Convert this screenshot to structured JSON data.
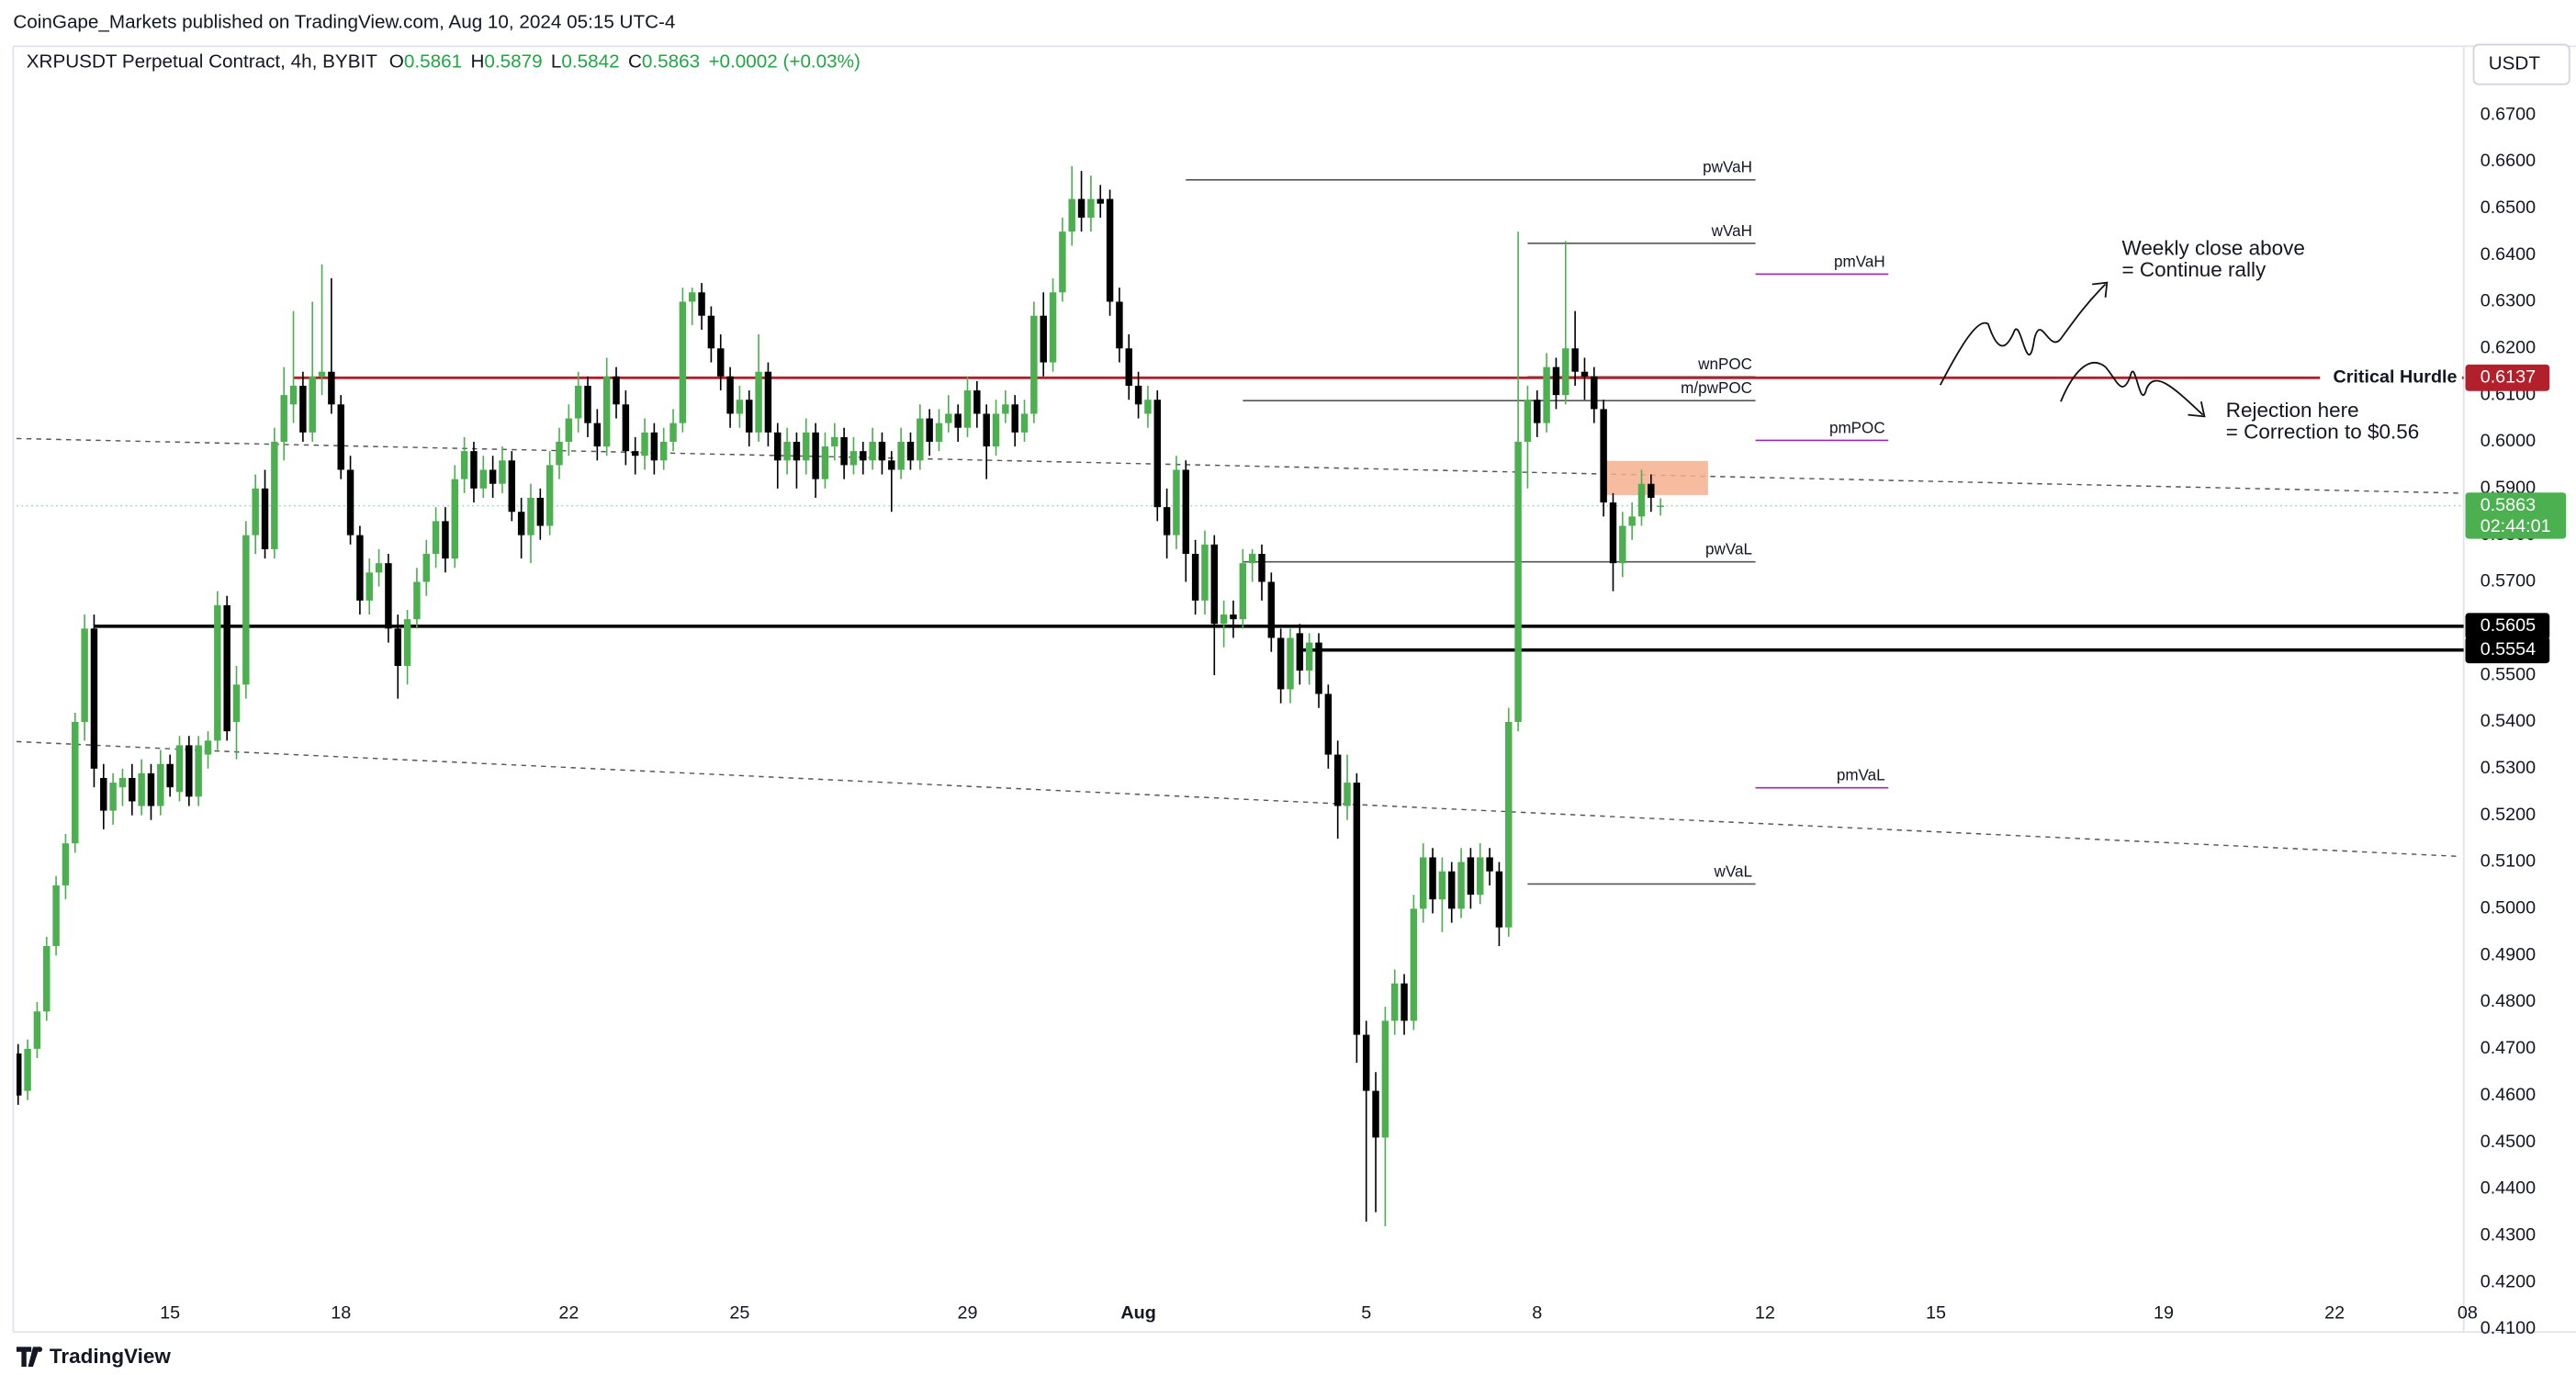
{
  "header": {
    "publisher": "CoinGape_Markets published on TradingView.com, Aug 10, 2024 05:15 UTC-4",
    "logo": "TradingView"
  },
  "chart_data": {
    "type": "candlestick",
    "title": "XRPUSDT Perpetual Contract, 4h, BYBIT",
    "ohlc_labels": [
      "O",
      "H",
      "L",
      "C"
    ],
    "change": "+0.0002 (+0.03%)",
    "currency": "USDT",
    "countdown": "02:44:01",
    "up_color": "#4caf50",
    "down_color": "#000000",
    "ylim": [
      0.4097,
      0.6847
    ],
    "xlim": [
      -0.17,
      257.6
    ],
    "yticks": [
      {
        "value": 0.67,
        "label": "0.6700"
      },
      {
        "value": 0.66,
        "label": "0.6600"
      },
      {
        "value": 0.65,
        "label": "0.6500"
      },
      {
        "value": 0.64,
        "label": "0.6400"
      },
      {
        "value": 0.63,
        "label": "0.6300"
      },
      {
        "value": 0.62,
        "label": "0.6200"
      },
      {
        "value": 0.61,
        "label": "0.6100"
      },
      {
        "value": 0.6,
        "label": "0.6000"
      },
      {
        "value": 0.59,
        "label": "0.5900"
      },
      {
        "value": 0.58,
        "label": "0.5800"
      },
      {
        "value": 0.57,
        "label": "0.5700"
      },
      {
        "value": 0.56,
        "label": "0.5600"
      },
      {
        "value": 0.55,
        "label": "0.5500"
      },
      {
        "value": 0.54,
        "label": "0.5400"
      },
      {
        "value": 0.53,
        "label": "0.5300"
      },
      {
        "value": 0.52,
        "label": "0.5200"
      },
      {
        "value": 0.51,
        "label": "0.5100"
      },
      {
        "value": 0.5,
        "label": "0.5000"
      },
      {
        "value": 0.49,
        "label": "0.4900"
      },
      {
        "value": 0.48,
        "label": "0.4800"
      },
      {
        "value": 0.47,
        "label": "0.4700"
      },
      {
        "value": 0.46,
        "label": "0.4600"
      },
      {
        "value": 0.45,
        "label": "0.4500"
      },
      {
        "value": 0.44,
        "label": "0.4400"
      },
      {
        "value": 0.43,
        "label": "0.4300"
      },
      {
        "value": 0.42,
        "label": "0.4200"
      },
      {
        "value": 0.41,
        "label": "0.4100"
      }
    ],
    "xticks": [
      {
        "value": 16,
        "label": "15"
      },
      {
        "value": 34,
        "label": "18"
      },
      {
        "value": 58,
        "label": "22"
      },
      {
        "value": 76,
        "label": "25"
      },
      {
        "value": 100,
        "label": "29"
      },
      {
        "value": 118,
        "label": "Aug"
      },
      {
        "value": 142,
        "label": "5"
      },
      {
        "value": 160,
        "label": "8"
      },
      {
        "value": 184,
        "label": "12"
      },
      {
        "value": 202,
        "label": "15"
      },
      {
        "value": 226,
        "label": "19"
      },
      {
        "value": 244,
        "label": "22"
      },
      {
        "value": 258,
        "label": "08"
      }
    ],
    "ohlc": [
      [
        0.469,
        0.471,
        0.458,
        0.46
      ],
      [
        0.461,
        0.472,
        0.459,
        0.47
      ],
      [
        0.47,
        0.48,
        0.468,
        0.478
      ],
      [
        0.478,
        0.494,
        0.476,
        0.492
      ],
      [
        0.492,
        0.507,
        0.49,
        0.505
      ],
      [
        0.505,
        0.516,
        0.502,
        0.514
      ],
      [
        0.514,
        0.542,
        0.512,
        0.54
      ],
      [
        0.54,
        0.563,
        0.536,
        0.56
      ],
      [
        0.56,
        0.563,
        0.526,
        0.53
      ],
      [
        0.528,
        0.531,
        0.517,
        0.521
      ],
      [
        0.521,
        0.529,
        0.518,
        0.527
      ],
      [
        0.526,
        0.53,
        0.522,
        0.528
      ],
      [
        0.528,
        0.531,
        0.52,
        0.523
      ],
      [
        0.522,
        0.532,
        0.52,
        0.529
      ],
      [
        0.529,
        0.531,
        0.519,
        0.522
      ],
      [
        0.522,
        0.534,
        0.52,
        0.531
      ],
      [
        0.531,
        0.533,
        0.524,
        0.526
      ],
      [
        0.525,
        0.537,
        0.523,
        0.535
      ],
      [
        0.535,
        0.537,
        0.522,
        0.524
      ],
      [
        0.524,
        0.537,
        0.522,
        0.535
      ],
      [
        0.533,
        0.538,
        0.53,
        0.536
      ],
      [
        0.536,
        0.568,
        0.534,
        0.565
      ],
      [
        0.565,
        0.567,
        0.536,
        0.538
      ],
      [
        0.54,
        0.552,
        0.532,
        0.548
      ],
      [
        0.548,
        0.583,
        0.545,
        0.58
      ],
      [
        0.58,
        0.593,
        0.576,
        0.59
      ],
      [
        0.59,
        0.594,
        0.575,
        0.577
      ],
      [
        0.577,
        0.603,
        0.575,
        0.6
      ],
      [
        0.6,
        0.616,
        0.596,
        0.61
      ],
      [
        0.608,
        0.628,
        0.604,
        0.612
      ],
      [
        0.612,
        0.615,
        0.6,
        0.602
      ],
      [
        0.602,
        0.63,
        0.6,
        0.614
      ],
      [
        0.614,
        0.638,
        0.61,
        0.615
      ],
      [
        0.615,
        0.635,
        0.606,
        0.608
      ],
      [
        0.608,
        0.61,
        0.592,
        0.594
      ],
      [
        0.594,
        0.597,
        0.578,
        0.58
      ],
      [
        0.58,
        0.582,
        0.563,
        0.566
      ],
      [
        0.566,
        0.575,
        0.563,
        0.572
      ],
      [
        0.572,
        0.577,
        0.569,
        0.574
      ],
      [
        0.574,
        0.576,
        0.557,
        0.56
      ],
      [
        0.56,
        0.563,
        0.545,
        0.552
      ],
      [
        0.552,
        0.564,
        0.548,
        0.562
      ],
      [
        0.562,
        0.573,
        0.56,
        0.57
      ],
      [
        0.57,
        0.579,
        0.567,
        0.576
      ],
      [
        0.576,
        0.586,
        0.573,
        0.583
      ],
      [
        0.583,
        0.586,
        0.572,
        0.575
      ],
      [
        0.575,
        0.595,
        0.573,
        0.592
      ],
      [
        0.592,
        0.601,
        0.589,
        0.598
      ],
      [
        0.598,
        0.6,
        0.587,
        0.59
      ],
      [
        0.59,
        0.597,
        0.588,
        0.594
      ],
      [
        0.594,
        0.597,
        0.588,
        0.591
      ],
      [
        0.591,
        0.599,
        0.589,
        0.596
      ],
      [
        0.596,
        0.598,
        0.583,
        0.585
      ],
      [
        0.585,
        0.588,
        0.575,
        0.58
      ],
      [
        0.58,
        0.591,
        0.574,
        0.588
      ],
      [
        0.588,
        0.59,
        0.579,
        0.582
      ],
      [
        0.582,
        0.598,
        0.58,
        0.595
      ],
      [
        0.595,
        0.603,
        0.592,
        0.6
      ],
      [
        0.6,
        0.608,
        0.597,
        0.605
      ],
      [
        0.605,
        0.615,
        0.602,
        0.612
      ],
      [
        0.612,
        0.614,
        0.601,
        0.604
      ],
      [
        0.604,
        0.607,
        0.596,
        0.599
      ],
      [
        0.599,
        0.618,
        0.597,
        0.614
      ],
      [
        0.614,
        0.616,
        0.605,
        0.608
      ],
      [
        0.608,
        0.611,
        0.595,
        0.598
      ],
      [
        0.598,
        0.601,
        0.593,
        0.597
      ],
      [
        0.597,
        0.605,
        0.594,
        0.602
      ],
      [
        0.602,
        0.604,
        0.593,
        0.596
      ],
      [
        0.596,
        0.603,
        0.594,
        0.6
      ],
      [
        0.6,
        0.607,
        0.598,
        0.604
      ],
      [
        0.604,
        0.633,
        0.602,
        0.63
      ],
      [
        0.63,
        0.633,
        0.625,
        0.632
      ],
      [
        0.632,
        0.634,
        0.624,
        0.627
      ],
      [
        0.627,
        0.629,
        0.617,
        0.62
      ],
      [
        0.62,
        0.623,
        0.611,
        0.614
      ],
      [
        0.614,
        0.616,
        0.603,
        0.606
      ],
      [
        0.606,
        0.612,
        0.603,
        0.609
      ],
      [
        0.609,
        0.611,
        0.599,
        0.602
      ],
      [
        0.602,
        0.623,
        0.6,
        0.615
      ],
      [
        0.615,
        0.617,
        0.599,
        0.602
      ],
      [
        0.602,
        0.604,
        0.59,
        0.596
      ],
      [
        0.596,
        0.603,
        0.593,
        0.6
      ],
      [
        0.6,
        0.602,
        0.59,
        0.596
      ],
      [
        0.596,
        0.605,
        0.593,
        0.602
      ],
      [
        0.602,
        0.604,
        0.588,
        0.592
      ],
      [
        0.592,
        0.602,
        0.59,
        0.599
      ],
      [
        0.599,
        0.604,
        0.596,
        0.601
      ],
      [
        0.601,
        0.603,
        0.592,
        0.595
      ],
      [
        0.595,
        0.601,
        0.593,
        0.598
      ],
      [
        0.598,
        0.6,
        0.593,
        0.596
      ],
      [
        0.596,
        0.603,
        0.594,
        0.6
      ],
      [
        0.6,
        0.602,
        0.593,
        0.596
      ],
      [
        0.596,
        0.598,
        0.585,
        0.594
      ],
      [
        0.594,
        0.603,
        0.592,
        0.6
      ],
      [
        0.6,
        0.602,
        0.594,
        0.596
      ],
      [
        0.596,
        0.608,
        0.594,
        0.605
      ],
      [
        0.605,
        0.607,
        0.597,
        0.6
      ],
      [
        0.6,
        0.607,
        0.598,
        0.604
      ],
      [
        0.604,
        0.61,
        0.602,
        0.606
      ],
      [
        0.606,
        0.608,
        0.6,
        0.603
      ],
      [
        0.603,
        0.614,
        0.601,
        0.611
      ],
      [
        0.611,
        0.613,
        0.603,
        0.606
      ],
      [
        0.606,
        0.608,
        0.592,
        0.599
      ],
      [
        0.599,
        0.609,
        0.597,
        0.606
      ],
      [
        0.606,
        0.611,
        0.604,
        0.608
      ],
      [
        0.608,
        0.61,
        0.599,
        0.602
      ],
      [
        0.602,
        0.609,
        0.6,
        0.606
      ],
      [
        0.606,
        0.63,
        0.604,
        0.627
      ],
      [
        0.627,
        0.632,
        0.614,
        0.617
      ],
      [
        0.617,
        0.635,
        0.615,
        0.632
      ],
      [
        0.632,
        0.648,
        0.63,
        0.645
      ],
      [
        0.645,
        0.659,
        0.642,
        0.652
      ],
      [
        0.652,
        0.658,
        0.645,
        0.648
      ],
      [
        0.648,
        0.657,
        0.645,
        0.652
      ],
      [
        0.652,
        0.655,
        0.648,
        0.651
      ],
      [
        0.652,
        0.654,
        0.627,
        0.63
      ],
      [
        0.63,
        0.633,
        0.617,
        0.62
      ],
      [
        0.62,
        0.623,
        0.609,
        0.612
      ],
      [
        0.612,
        0.615,
        0.605,
        0.608
      ],
      [
        0.606,
        0.612,
        0.603,
        0.609
      ],
      [
        0.609,
        0.611,
        0.583,
        0.586
      ],
      [
        0.586,
        0.59,
        0.575,
        0.58
      ],
      [
        0.58,
        0.597,
        0.577,
        0.594
      ],
      [
        0.594,
        0.596,
        0.57,
        0.576
      ],
      [
        0.576,
        0.579,
        0.563,
        0.566
      ],
      [
        0.566,
        0.581,
        0.563,
        0.578
      ],
      [
        0.578,
        0.58,
        0.55,
        0.561
      ],
      [
        0.561,
        0.566,
        0.556,
        0.563
      ],
      [
        0.563,
        0.566,
        0.558,
        0.562
      ],
      [
        0.562,
        0.577,
        0.56,
        0.574
      ],
      [
        0.574,
        0.577,
        0.57,
        0.576
      ],
      [
        0.576,
        0.578,
        0.566,
        0.57
      ],
      [
        0.57,
        0.572,
        0.555,
        0.558
      ],
      [
        0.558,
        0.56,
        0.544,
        0.547
      ],
      [
        0.547,
        0.56,
        0.544,
        0.558
      ],
      [
        0.559,
        0.561,
        0.548,
        0.551
      ],
      [
        0.551,
        0.559,
        0.548,
        0.557
      ],
      [
        0.557,
        0.559,
        0.543,
        0.546
      ],
      [
        0.546,
        0.548,
        0.53,
        0.533
      ],
      [
        0.533,
        0.536,
        0.515,
        0.522
      ],
      [
        0.522,
        0.533,
        0.519,
        0.527
      ],
      [
        0.527,
        0.529,
        0.467,
        0.473
      ],
      [
        0.473,
        0.476,
        0.433,
        0.461
      ],
      [
        0.461,
        0.465,
        0.435,
        0.451
      ],
      [
        0.451,
        0.479,
        0.432,
        0.476
      ],
      [
        0.476,
        0.487,
        0.473,
        0.484
      ],
      [
        0.484,
        0.486,
        0.473,
        0.476
      ],
      [
        0.476,
        0.503,
        0.474,
        0.5
      ],
      [
        0.5,
        0.514,
        0.497,
        0.511
      ],
      [
        0.511,
        0.513,
        0.499,
        0.502
      ],
      [
        0.502,
        0.511,
        0.495,
        0.508
      ],
      [
        0.508,
        0.51,
        0.497,
        0.5
      ],
      [
        0.5,
        0.513,
        0.498,
        0.51
      ],
      [
        0.511,
        0.513,
        0.5,
        0.503
      ],
      [
        0.503,
        0.514,
        0.501,
        0.511
      ],
      [
        0.511,
        0.513,
        0.505,
        0.508
      ],
      [
        0.508,
        0.51,
        0.492,
        0.496
      ],
      [
        0.496,
        0.543,
        0.494,
        0.54
      ],
      [
        0.54,
        0.645,
        0.538,
        0.6
      ],
      [
        0.6,
        0.612,
        0.59,
        0.609
      ],
      [
        0.609,
        0.611,
        0.601,
        0.604
      ],
      [
        0.604,
        0.619,
        0.602,
        0.616
      ],
      [
        0.616,
        0.618,
        0.607,
        0.61
      ],
      [
        0.61,
        0.643,
        0.608,
        0.62
      ],
      [
        0.62,
        0.628,
        0.612,
        0.615
      ],
      [
        0.615,
        0.618,
        0.609,
        0.614
      ],
      [
        0.614,
        0.616,
        0.604,
        0.607
      ],
      [
        0.607,
        0.609,
        0.584,
        0.587
      ],
      [
        0.587,
        0.589,
        0.568,
        0.574
      ],
      [
        0.574,
        0.585,
        0.571,
        0.582
      ],
      [
        0.582,
        0.587,
        0.579,
        0.584
      ],
      [
        0.584,
        0.594,
        0.582,
        0.591
      ],
      [
        0.591,
        0.593,
        0.585,
        0.588
      ],
      [
        0.5861,
        0.5879,
        0.5842,
        0.5863
      ]
    ],
    "key_levels": [
      {
        "name": "Critical Hurdle",
        "value": 0.6137,
        "color": "#b2202c",
        "start": 29
      },
      {
        "value": 0.5605,
        "color": "#000000",
        "start": 8
      },
      {
        "value": 0.5554,
        "color": "#000000",
        "start": 135
      }
    ],
    "profile_levels": [
      {
        "name": "pwVaH",
        "value": 0.6561,
        "x": [
          123,
          183
        ],
        "color": "#555555"
      },
      {
        "name": "wVaH",
        "value": 0.6425,
        "x": [
          159,
          183
        ],
        "color": "#555555"
      },
      {
        "name": "pmVaH",
        "value": 0.6359,
        "x": [
          183,
          197
        ],
        "color": "#9c27b0"
      },
      {
        "name": "wnPOC",
        "value": 0.6139,
        "x": [
          159,
          183
        ],
        "color": "#555555"
      },
      {
        "name": "m/pwPOC",
        "value": 0.6088,
        "x": [
          129,
          183
        ],
        "color": "#555555"
      },
      {
        "name": "pmPOC",
        "value": 0.6003,
        "x": [
          183,
          197
        ],
        "color": "#9c27b0"
      },
      {
        "name": "pwVaL",
        "value": 0.5743,
        "x": [
          129,
          183
        ],
        "color": "#555555"
      },
      {
        "name": "pmVaL",
        "value": 0.5259,
        "x": [
          183,
          197
        ],
        "color": "#9c27b0"
      },
      {
        "name": "wVaL",
        "value": 0.5053,
        "x": [
          159,
          183
        ],
        "color": "#555555"
      }
    ],
    "trendlines": [
      {
        "x": [
          -0.17,
          257.2
        ],
        "y": [
          0.6007,
          0.589
        ]
      },
      {
        "x": [
          -0.17,
          257.2
        ],
        "y": [
          0.5358,
          0.5112
        ]
      }
    ],
    "zones": [
      {
        "x": [
          167,
          178
        ],
        "y": [
          0.5886,
          0.5959
        ],
        "color": "#f6b08e"
      }
    ],
    "annotations": [
      {
        "lines": [
          "Weekly close above",
          "= Continue rally"
        ]
      },
      {
        "lines": [
          "Rejection here",
          "= Correction to $0.56"
        ]
      }
    ]
  }
}
